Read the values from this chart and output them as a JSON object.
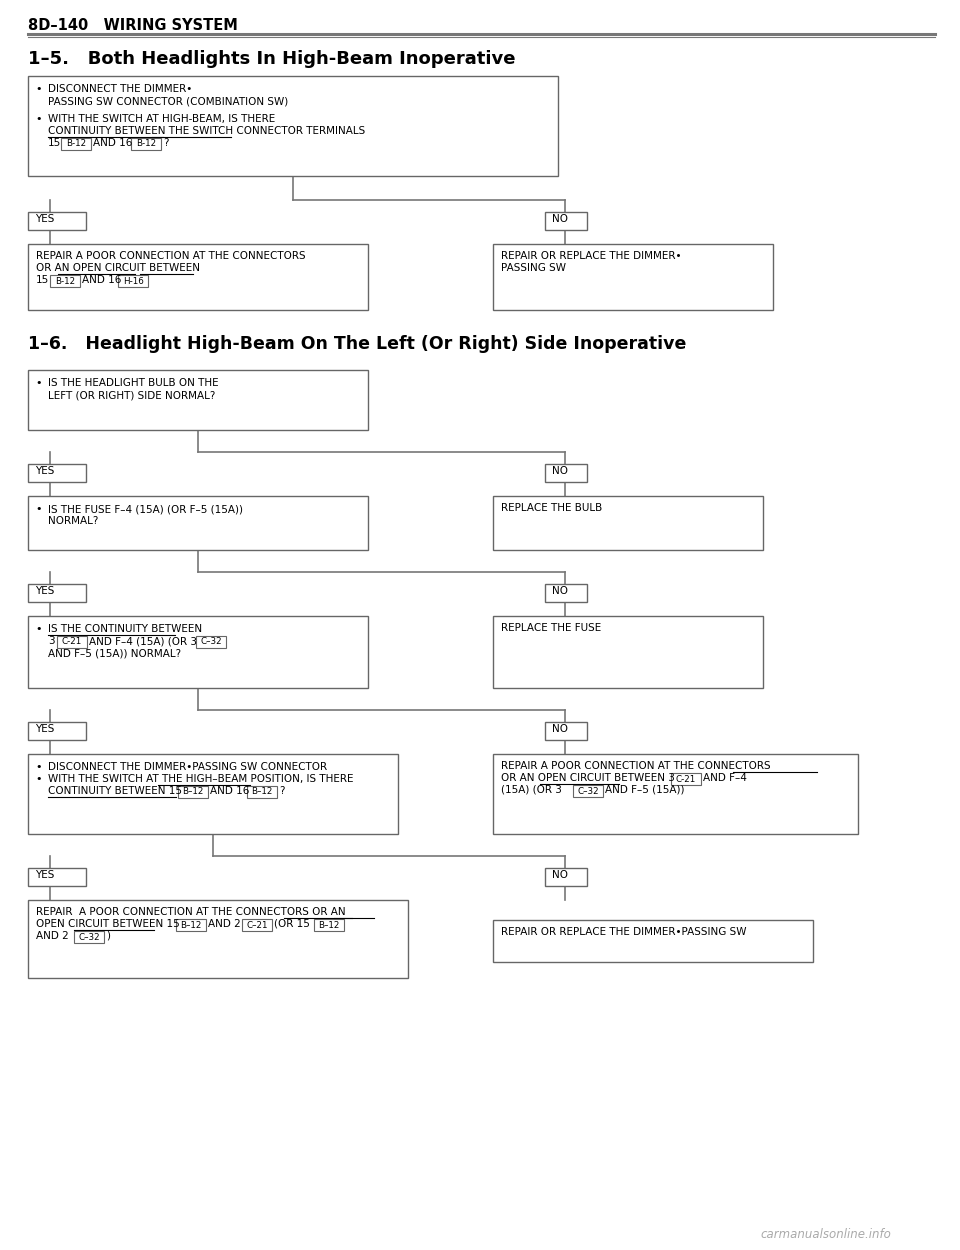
{
  "bg_color": "#ffffff",
  "header_text": "8D–140   WIRING SYSTEM",
  "section1_title": "1–5.   Both Headlights In High-Beam Inoperative",
  "section2_title": "1–6.   Headlight High-Beam On The Left (Or Right) Side Inoperative",
  "watermark": "carmanualsonline.info",
  "lc": "#777777",
  "bc": "#666666"
}
